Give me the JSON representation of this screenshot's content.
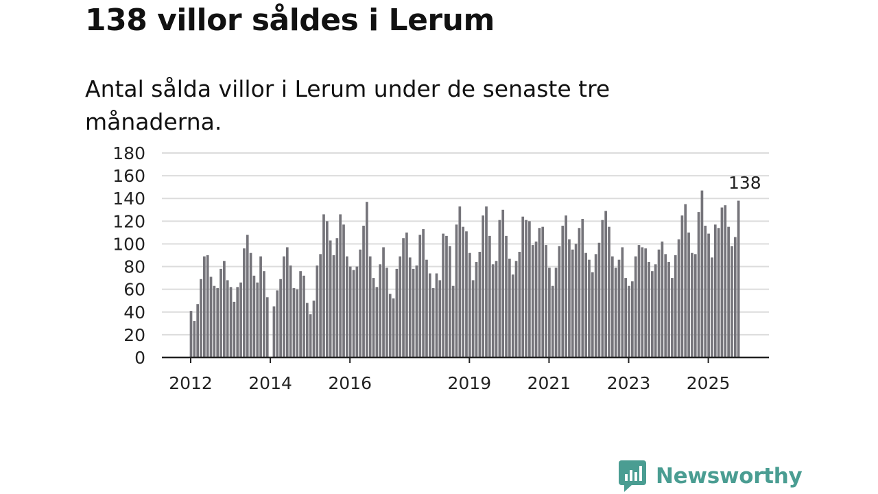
{
  "title": "138 villor såldes i Lerum",
  "subtitle": "Antal sålda villor i Lerum under de senaste tre månaderna.",
  "brand": {
    "name": "Newsworthy",
    "color": "#4a9d92",
    "icon": "newsworthy-logo-icon"
  },
  "colors": {
    "bar": "#75747a",
    "highlight": "#1aa39a",
    "grid": "#dcdcdc",
    "axis": "#222222"
  },
  "chart_data": {
    "type": "bar",
    "title": "138 villor såldes i Lerum",
    "subtitle": "Antal sålda villor i Lerum under de senaste tre månaderna.",
    "xlabel": "",
    "ylabel": "",
    "ylim": [
      0,
      180
    ],
    "yticks": [
      "0",
      "20",
      "40",
      "60",
      "80",
      "100",
      "120",
      "140",
      "160",
      "180"
    ],
    "xticks": [
      {
        "label": "2012",
        "index": 0
      },
      {
        "label": "2014",
        "index": 24
      },
      {
        "label": "2016",
        "index": 48
      },
      {
        "label": "2019",
        "index": 84
      },
      {
        "label": "2021",
        "index": 108
      },
      {
        "label": "2023",
        "index": 132
      },
      {
        "label": "2025",
        "index": 156
      }
    ],
    "start": "2012-01",
    "frequency": "monthly",
    "grid": true,
    "values": [
      41,
      32,
      47,
      69,
      89,
      90,
      71,
      63,
      61,
      78,
      85,
      68,
      62,
      49,
      62,
      66,
      96,
      108,
      92,
      72,
      66,
      89,
      76,
      53,
      0,
      45,
      59,
      69,
      89,
      97,
      81,
      61,
      60,
      76,
      72,
      48,
      38,
      50,
      81,
      91,
      126,
      120,
      103,
      90,
      105,
      126,
      117,
      89,
      80,
      77,
      80,
      95,
      116,
      137,
      89,
      70,
      62,
      82,
      97,
      79,
      56,
      52,
      78,
      89,
      105,
      110,
      88,
      78,
      81,
      108,
      113,
      86,
      74,
      61,
      74,
      68,
      109,
      107,
      98,
      63,
      117,
      133,
      115,
      111,
      92,
      68,
      84,
      93,
      125,
      133,
      107,
      82,
      85,
      121,
      130,
      107,
      87,
      73,
      85,
      93,
      124,
      121,
      120,
      99,
      102,
      114,
      115,
      99,
      79,
      63,
      79,
      98,
      116,
      125,
      104,
      95,
      100,
      114,
      122,
      92,
      86,
      75,
      91,
      101,
      121,
      129,
      115,
      89,
      79,
      86,
      97,
      70,
      63,
      67,
      89,
      99,
      97,
      96,
      84,
      76,
      82,
      95,
      102,
      91,
      84,
      70,
      90,
      104,
      125,
      135,
      110,
      92,
      91,
      128,
      147,
      116,
      109,
      88,
      117,
      114,
      132,
      134,
      115,
      98,
      106,
      138
    ],
    "highlight_index": 167,
    "annotations": [
      {
        "text": "138",
        "index": 167
      }
    ]
  }
}
